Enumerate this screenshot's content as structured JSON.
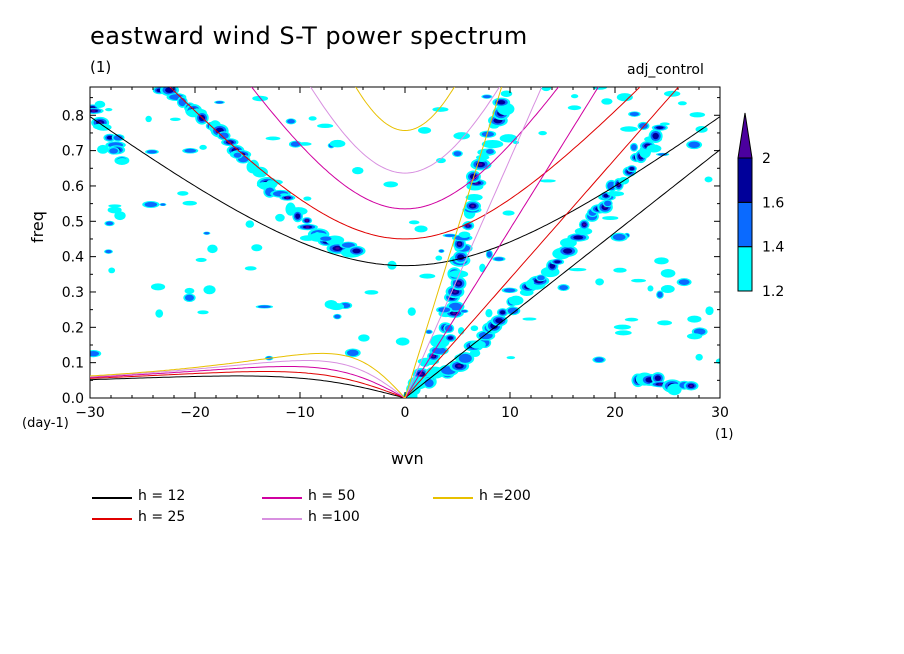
{
  "title": "eastward wind S-T power spectrum",
  "subtitle": "(1)",
  "run_label": "adj_control",
  "chart_data": {
    "type": "heatmap",
    "xlabel": "wvn",
    "ylabel": "freq",
    "x_unit": "(1)",
    "y_unit": "(day-1)",
    "xlim": [
      -30,
      30
    ],
    "ylim": [
      0,
      0.88
    ],
    "x_ticks": [
      -30,
      -20,
      -10,
      0,
      10,
      20,
      30
    ],
    "x_tick_labels": [
      "−30",
      "−20",
      "−10",
      "0",
      "10",
      "20",
      "30"
    ],
    "y_ticks": [
      0,
      0.1,
      0.2,
      0.3,
      0.4,
      0.5,
      0.6,
      0.7,
      0.8
    ],
    "y_tick_labels": [
      "0.0",
      "0.1",
      "0.2",
      "0.3",
      "0.4",
      "0.5",
      "0.6",
      "0.7",
      "0.8"
    ],
    "colorbar": {
      "levels": [
        1.2,
        1.4,
        1.6,
        2
      ],
      "level_labels": [
        "1.2",
        "1.4",
        "1.6",
        "2"
      ],
      "colors": [
        "#00ffff",
        "#0a6aff",
        "#00009a",
        "#4b009e"
      ]
    },
    "dispersion_curves": [
      {
        "name": "h = 12",
        "h": 12,
        "color": "#000000"
      },
      {
        "name": "h = 25",
        "h": 25,
        "color": "#e00000"
      },
      {
        "name": "h = 50",
        "h": 50,
        "color": "#d000a0"
      },
      {
        "name": "h =100",
        "h": 100,
        "color": "#d890e0"
      },
      {
        "name": "h =200",
        "h": 200,
        "color": "#e8c000"
      }
    ],
    "power_ridges": [
      {
        "points": [
          [
            -23,
            0.88
          ],
          [
            -17,
            0.74
          ],
          [
            -13,
            0.6
          ],
          [
            -8,
            0.46
          ],
          [
            -4,
            0.4
          ]
        ]
      },
      {
        "points": [
          [
            0.5,
            0.01
          ],
          [
            4,
            0.17
          ],
          [
            5,
            0.38
          ],
          [
            7,
            0.65
          ],
          [
            10,
            0.88
          ]
        ]
      },
      {
        "points": [
          [
            1,
            0.02
          ],
          [
            6,
            0.12
          ],
          [
            10,
            0.25
          ],
          [
            14,
            0.38
          ],
          [
            18,
            0.52
          ],
          [
            21,
            0.64
          ],
          [
            25,
            0.78
          ]
        ]
      },
      {
        "points": [
          [
            -30,
            0.82
          ],
          [
            -28,
            0.74
          ],
          [
            -27,
            0.66
          ]
        ]
      },
      {
        "points": [
          [
            22,
            0.06
          ],
          [
            26,
            0.03
          ],
          [
            28,
            0.02
          ]
        ]
      }
    ]
  }
}
